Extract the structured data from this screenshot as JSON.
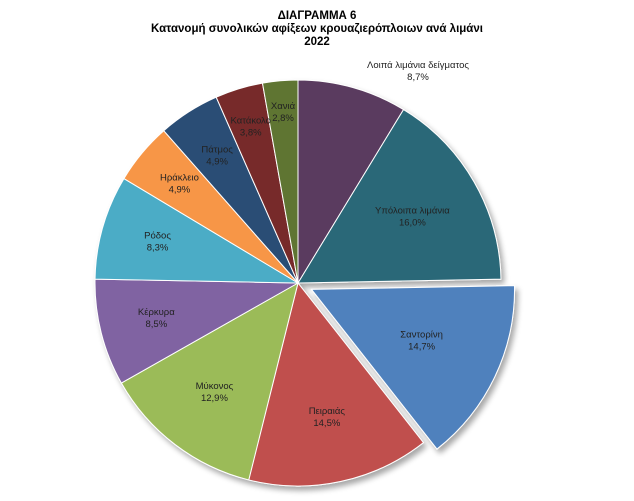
{
  "chart_data": {
    "type": "pie",
    "title": "ΔΙΑΓΡΑΜΜΑ 6",
    "subtitle": "Κατανομή συνολικών αφίξεων κρουαζιερόπλοιων ανά λιμάνι",
    "year": "2022",
    "start_angle_deg": 0,
    "exploded": [
      "Σαντορίνη"
    ],
    "slices": [
      {
        "name": "Λοιπά λιμάνια δείγματος",
        "value": 8.7,
        "label": "8,7%",
        "color": "#5a3a5e"
      },
      {
        "name": "Υπόλοιπα λιμάνια",
        "value": 16.0,
        "label": "16,0%",
        "color": "#2b6878"
      },
      {
        "name": "Σαντορίνη",
        "value": 14.7,
        "label": "14,7%",
        "color": "#4f81bd"
      },
      {
        "name": "Πειραιάς",
        "value": 14.5,
        "label": "14,5%",
        "color": "#c0504d"
      },
      {
        "name": "Μύκονος",
        "value": 12.9,
        "label": "12,9%",
        "color": "#9bbb59"
      },
      {
        "name": "Κέρκυρα",
        "value": 8.5,
        "label": "8,5%",
        "color": "#8064a2"
      },
      {
        "name": "Ρόδος",
        "value": 8.3,
        "label": "8,3%",
        "color": "#4bacc6"
      },
      {
        "name": "Ηράκλειο",
        "value": 4.9,
        "label": "4,9%",
        "color": "#f79646"
      },
      {
        "name": "Πάτμος",
        "value": 4.9,
        "label": "4,9%",
        "color": "#2c4d75"
      },
      {
        "name": "Κατάκολο",
        "value": 3.8,
        "label": "3,8%",
        "color": "#772c2a"
      },
      {
        "name": "Χανιά",
        "value": 2.8,
        "label": "2,8%",
        "color": "#5f7530"
      }
    ]
  }
}
